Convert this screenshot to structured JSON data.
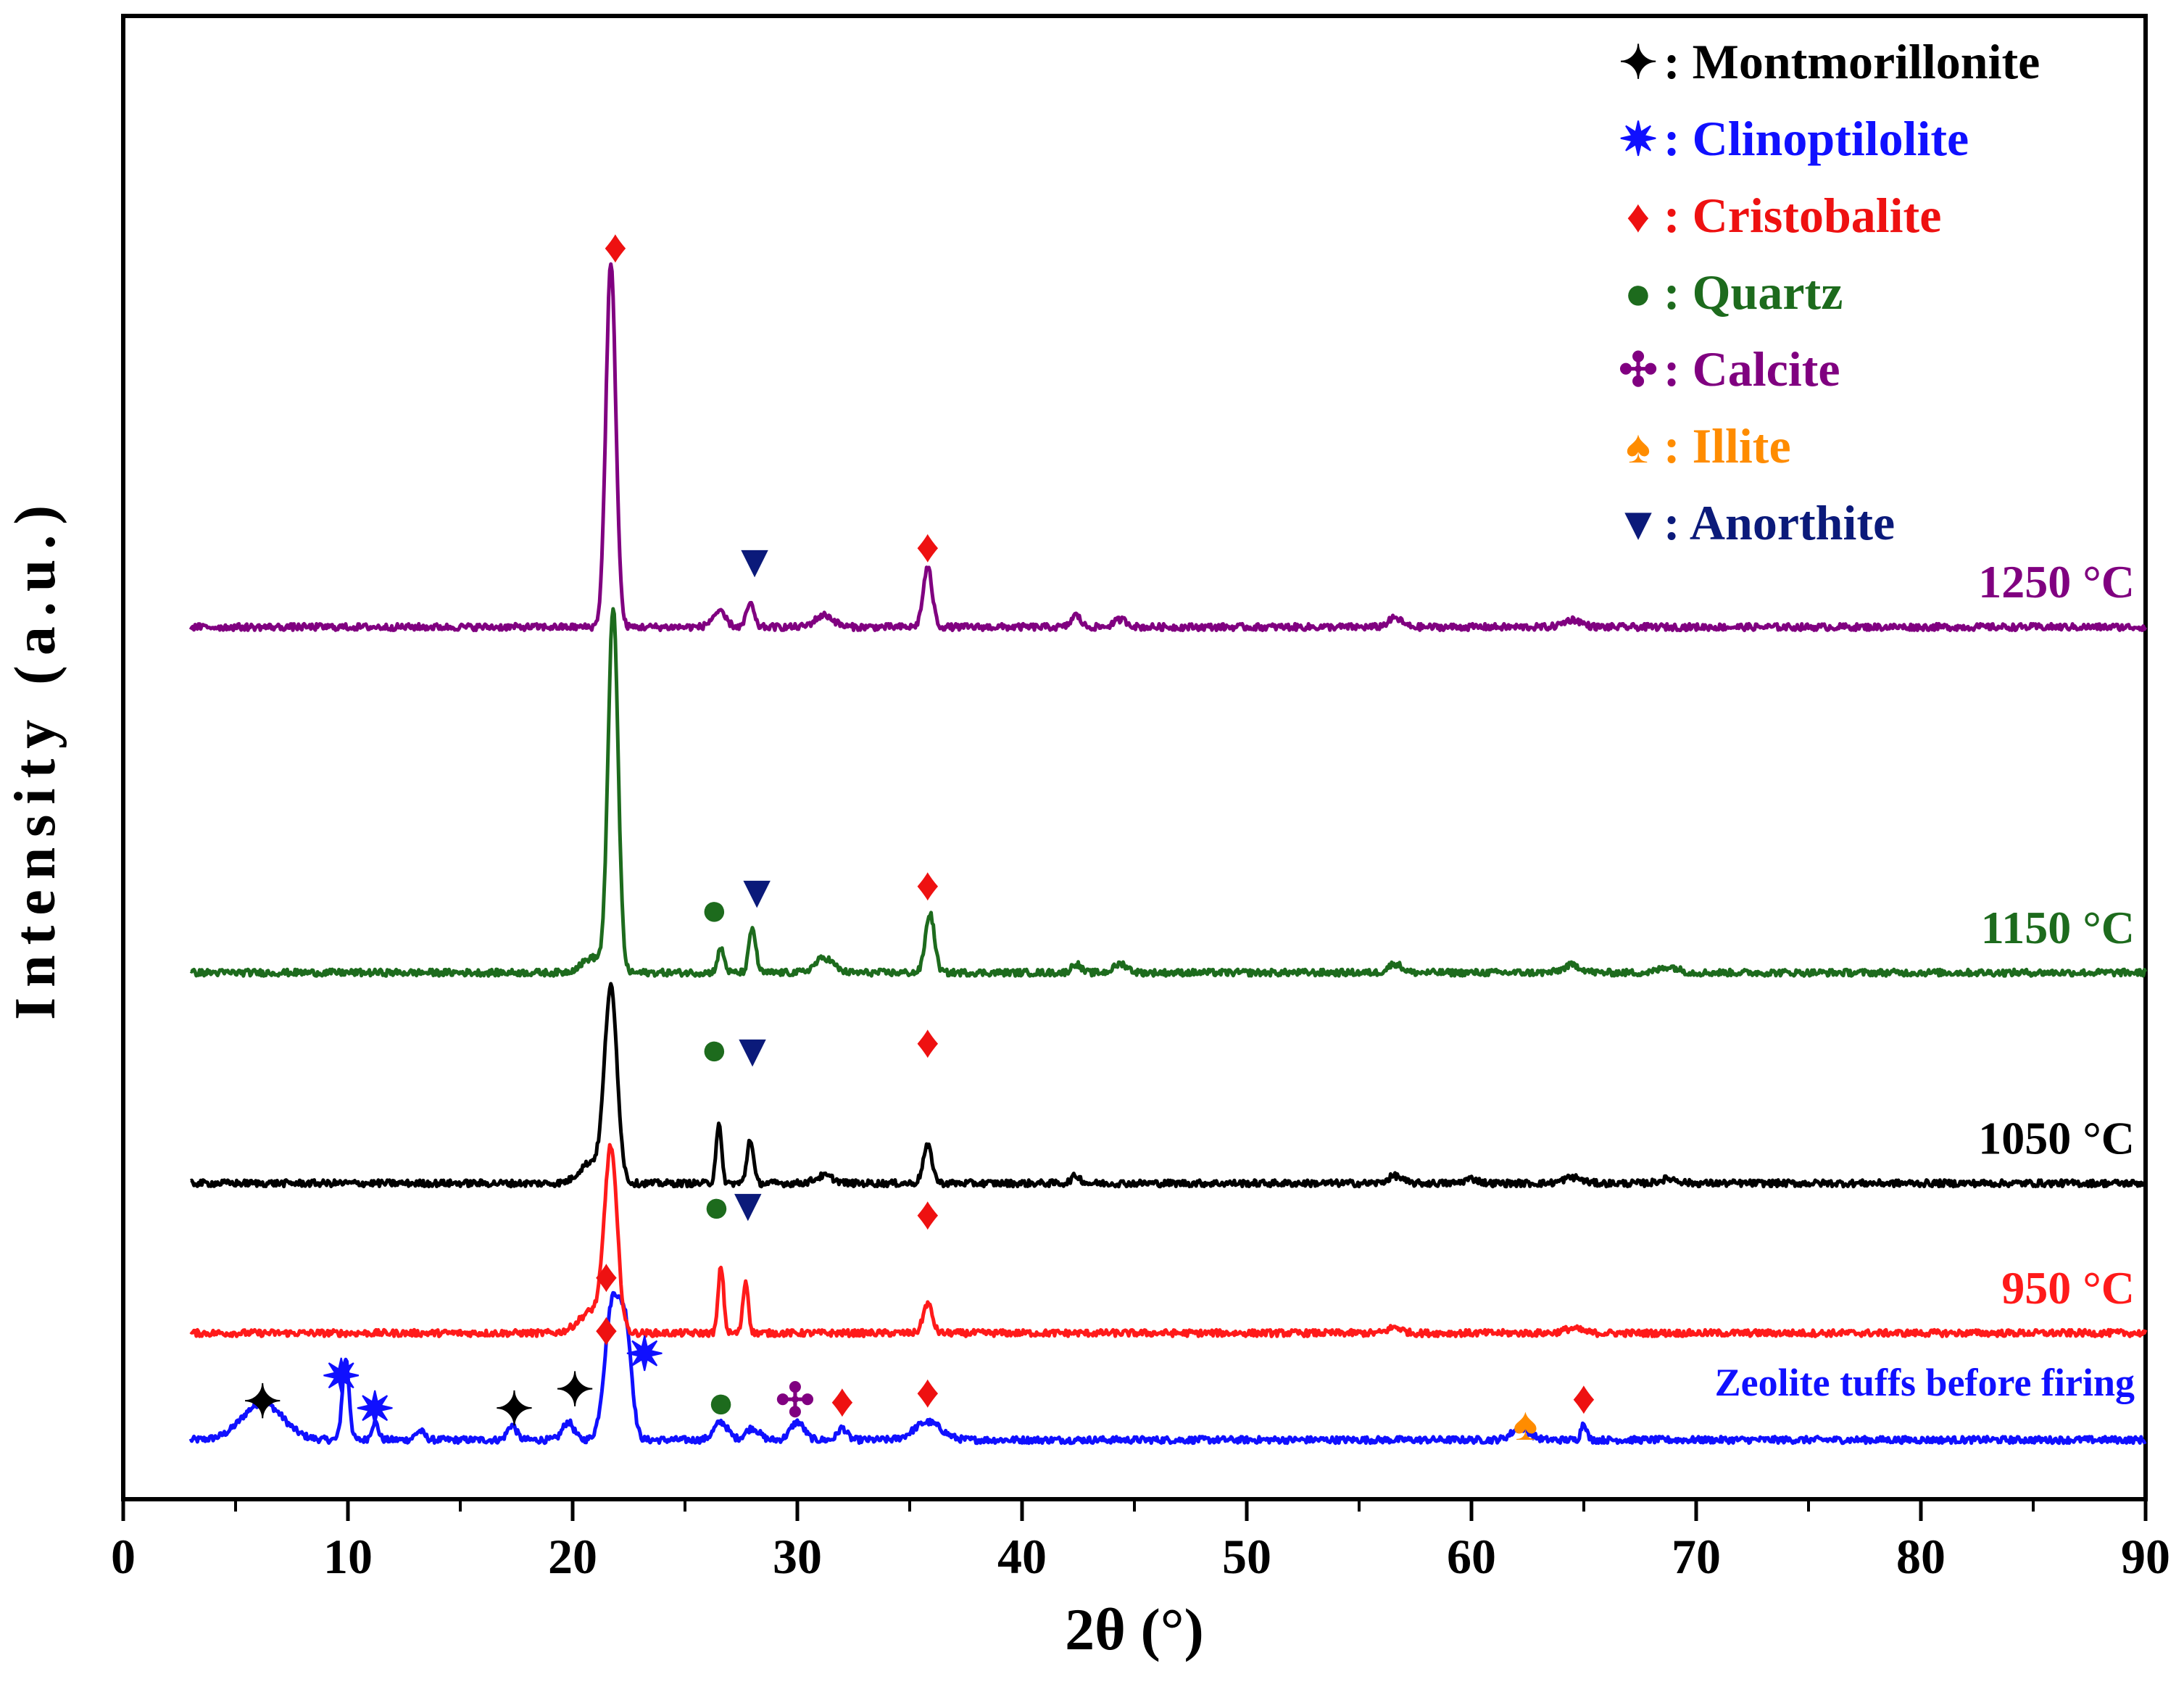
{
  "chart_data": {
    "type": "line",
    "title": "",
    "xlabel": "2θ (°)",
    "ylabel": "Intensity (a.u.)",
    "xlim": [
      0,
      90
    ],
    "ylim": [
      0,
      1
    ],
    "xticks": [
      "0",
      "10",
      "20",
      "30",
      "40",
      "50",
      "60",
      "70",
      "80",
      "90"
    ],
    "yticks": [],
    "grid": false,
    "legend_position": "top-right",
    "legend": [
      {
        "symbol": "✦",
        "name": "Montmorillonite",
        "color": "#000000"
      },
      {
        "symbol": "✷",
        "name": "Clinoptilolite",
        "color": "#1010ff"
      },
      {
        "symbol": "♦",
        "name": "Cristobalite",
        "color": "#ee1111"
      },
      {
        "symbol": "●",
        "name": "Quartz",
        "color": "#1d6b1d"
      },
      {
        "symbol": "✣",
        "name": "Calcite",
        "color": "#800080"
      },
      {
        "symbol": "♠",
        "name": "Illite",
        "color": "#ff8c00"
      },
      {
        "symbol": "▼",
        "name": "Anorthite",
        "color": "#0b1a7a"
      }
    ],
    "series": [
      {
        "name": "Zeolite tuffs before firing",
        "color": "#1010ff",
        "baseline": 0.04,
        "x_start": 3,
        "x_end": 90,
        "peaks": [
          [
            6.2,
            0.025,
            0.9
          ],
          [
            9.9,
            0.055,
            0.15
          ],
          [
            11.2,
            0.012,
            0.15
          ],
          [
            13.2,
            0.006,
            0.2
          ],
          [
            17.3,
            0.01,
            0.2
          ],
          [
            19.8,
            0.012,
            0.25
          ],
          [
            21.8,
            0.095,
            0.35
          ],
          [
            22.4,
            0.06,
            0.25
          ],
          [
            26.6,
            0.012,
            0.3
          ],
          [
            28.0,
            0.008,
            0.3
          ],
          [
            30.0,
            0.012,
            0.3
          ],
          [
            32.0,
            0.008,
            0.2
          ],
          [
            35.8,
            0.012,
            0.6
          ],
          [
            62.2,
            0.008,
            0.4
          ],
          [
            65.0,
            0.012,
            0.12
          ]
        ],
        "markers": [
          {
            "symbol": "✦",
            "phase": "Montmorillonite",
            "x": 6.2,
            "y": 0.055
          },
          {
            "symbol": "✷",
            "phase": "Clinoptilolite",
            "x": 9.7,
            "y": 0.072
          },
          {
            "symbol": "✷",
            "phase": "Clinoptilolite",
            "x": 11.2,
            "y": 0.05
          },
          {
            "symbol": "✦",
            "phase": "Montmorillonite",
            "x": 17.4,
            "y": 0.05
          },
          {
            "symbol": "✦",
            "phase": "Montmorillonite",
            "x": 20.1,
            "y": 0.063
          },
          {
            "symbol": "♦",
            "phase": "Cristobalite",
            "x": 21.5,
            "y": 0.104
          },
          {
            "symbol": "✷",
            "phase": "Clinoptilolite",
            "x": 23.2,
            "y": 0.087
          },
          {
            "symbol": "●",
            "phase": "Quartz",
            "x": 26.6,
            "y": 0.055
          },
          {
            "symbol": "✣",
            "phase": "Calcite",
            "x": 29.9,
            "y": 0.056
          },
          {
            "symbol": "♦",
            "phase": "Cristobalite",
            "x": 32.0,
            "y": 0.056
          },
          {
            "symbol": "♦",
            "phase": "Cristobalite",
            "x": 35.8,
            "y": 0.062
          },
          {
            "symbol": "♠",
            "phase": "Illite",
            "x": 62.4,
            "y": 0.04
          },
          {
            "symbol": "♦",
            "phase": "Cristobalite",
            "x": 65.0,
            "y": 0.058
          }
        ],
        "label": "Zeolite tuffs before firing"
      },
      {
        "name": "950 °C",
        "color": "#ff1a1a",
        "baseline": 0.112,
        "x_start": 3,
        "x_end": 90,
        "peaks": [
          [
            21.7,
            0.12,
            0.28
          ],
          [
            20.9,
            0.015,
            0.6
          ],
          [
            26.6,
            0.045,
            0.12
          ],
          [
            27.7,
            0.035,
            0.12
          ],
          [
            35.8,
            0.02,
            0.2
          ],
          [
            56.6,
            0.004,
            0.3
          ],
          [
            64.5,
            0.003,
            0.4
          ]
        ],
        "markers": [
          {
            "symbol": "♦",
            "phase": "Cristobalite",
            "x": 21.5,
            "y": 0.14
          },
          {
            "symbol": "●",
            "phase": "Quartz",
            "x": 26.4,
            "y": 0.187
          },
          {
            "symbol": "▼",
            "phase": "Anorthite",
            "x": 27.8,
            "y": 0.188
          },
          {
            "symbol": "♦",
            "phase": "Cristobalite",
            "x": 35.8,
            "y": 0.182
          }
        ],
        "label": "950 °C"
      },
      {
        "name": "1050 °C",
        "color": "#000000",
        "baseline": 0.213,
        "x_start": 3,
        "x_end": 90,
        "peaks": [
          [
            21.7,
            0.13,
            0.28
          ],
          [
            20.8,
            0.014,
            0.5
          ],
          [
            26.5,
            0.04,
            0.12
          ],
          [
            27.9,
            0.03,
            0.14
          ],
          [
            31.2,
            0.005,
            0.4
          ],
          [
            35.8,
            0.025,
            0.2
          ],
          [
            42.4,
            0.005,
            0.2
          ],
          [
            56.6,
            0.005,
            0.3
          ],
          [
            60.0,
            0.003,
            0.3
          ],
          [
            64.5,
            0.004,
            0.4
          ],
          [
            68.8,
            0.003,
            0.4
          ]
        ],
        "markers": [
          {
            "symbol": "●",
            "phase": "Quartz",
            "x": 26.3,
            "y": 0.293
          },
          {
            "symbol": "▼",
            "phase": "Anorthite",
            "x": 28.0,
            "y": 0.292
          },
          {
            "symbol": "♦",
            "phase": "Cristobalite",
            "x": 35.8,
            "y": 0.298
          }
        ],
        "label": "1050 °C"
      },
      {
        "name": "1150 °C",
        "color": "#1d6b1d",
        "baseline": 0.355,
        "x_start": 3,
        "x_end": 90,
        "peaks": [
          [
            21.8,
            0.245,
            0.22
          ],
          [
            20.9,
            0.01,
            0.5
          ],
          [
            26.6,
            0.016,
            0.15
          ],
          [
            28.0,
            0.03,
            0.15
          ],
          [
            31.2,
            0.01,
            0.4
          ],
          [
            35.9,
            0.04,
            0.2
          ],
          [
            42.4,
            0.006,
            0.2
          ],
          [
            44.4,
            0.006,
            0.3
          ],
          [
            56.6,
            0.006,
            0.3
          ],
          [
            64.5,
            0.005,
            0.4
          ],
          [
            68.8,
            0.004,
            0.4
          ]
        ],
        "markers": [
          {
            "symbol": "●",
            "phase": "Quartz",
            "x": 26.3,
            "y": 0.387
          },
          {
            "symbol": "▼",
            "phase": "Anorthite",
            "x": 28.2,
            "y": 0.399
          },
          {
            "symbol": "♦",
            "phase": "Cristobalite",
            "x": 35.8,
            "y": 0.404
          }
        ],
        "label": "1150 °C"
      },
      {
        "name": "1250 °C",
        "color": "#800080",
        "baseline": 0.588,
        "x_start": 3,
        "x_end": 90,
        "peaks": [
          [
            21.7,
            0.245,
            0.22
          ],
          [
            26.5,
            0.01,
            0.3
          ],
          [
            27.9,
            0.016,
            0.16
          ],
          [
            31.2,
            0.008,
            0.4
          ],
          [
            35.8,
            0.04,
            0.2
          ],
          [
            42.4,
            0.008,
            0.2
          ],
          [
            44.4,
            0.005,
            0.3
          ],
          [
            56.6,
            0.006,
            0.3
          ],
          [
            64.5,
            0.005,
            0.4
          ]
        ],
        "markers": [
          {
            "symbol": "♦",
            "phase": "Cristobalite",
            "x": 21.9,
            "y": 0.834
          },
          {
            "symbol": "▼",
            "phase": "Anorthite",
            "x": 28.1,
            "y": 0.622
          },
          {
            "symbol": "♦",
            "phase": "Cristobalite",
            "x": 35.8,
            "y": 0.632
          }
        ],
        "label": "1250 °C"
      }
    ]
  }
}
